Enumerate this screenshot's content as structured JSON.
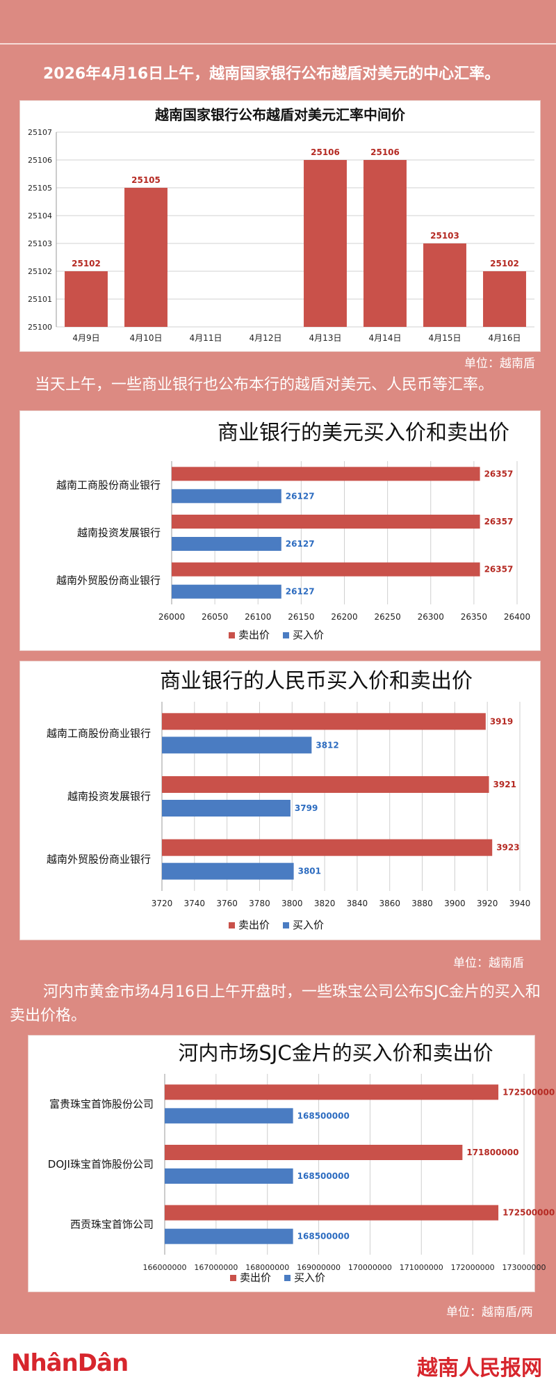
{
  "intro": {
    "p1": "2026年4月16日上午，越南国家银行公布越盾对美元的中心汇率。",
    "p2": "当天上午，一些商业银行也公布本行的越盾对美元、人民币等汇率。",
    "p3": "河内市黄金市场4月16日上午开盘时，一些珠宝公司公布SJC金片的买入和卖出价格。"
  },
  "units": {
    "u1": "单位：越南盾",
    "u2": "单位：越南盾",
    "u3": "单位：越南盾/两"
  },
  "footer": {
    "logo_left": "NhânDân",
    "logo_right": "越南人民报网"
  },
  "colors": {
    "red": "#c9514a",
    "blue": "#4a7cc2",
    "red_label": "#b52a23",
    "blue_label": "#2d6cc0"
  },
  "chart_data": [
    {
      "type": "bar",
      "title": "越南国家银行公布越盾对美元汇率中间价",
      "categories": [
        "4月9日",
        "4月10日",
        "4月11日",
        "4月12日",
        "4月13日",
        "4月14日",
        "4月15日",
        "4月16日"
      ],
      "values": [
        25102,
        25105,
        null,
        null,
        25106,
        25106,
        25103,
        25102
      ],
      "labels": [
        "25102",
        "25105",
        "",
        "",
        "25106",
        "25106",
        "25103",
        "25102"
      ],
      "ylim": [
        25100,
        25107
      ],
      "yticks": [
        25100,
        25101,
        25102,
        25103,
        25104,
        25105,
        25106,
        25107
      ],
      "ytick_labels": [
        "25100",
        "25101",
        "25102",
        "25103",
        "25104",
        "25105",
        "25106",
        "25107"
      ],
      "grid": true
    },
    {
      "type": "bar",
      "orientation": "horizontal",
      "title": "商业银行的美元买入价和卖出价",
      "categories": [
        "越南工商股份商业银行",
        "越南投资发展银行",
        "越南外贸股份商业银行"
      ],
      "series": [
        {
          "name": "卖出价",
          "values": [
            26357,
            26357,
            26357
          ],
          "labels": [
            "26357",
            "26357",
            "26357"
          ]
        },
        {
          "name": "买入价",
          "values": [
            26127,
            26127,
            26127
          ],
          "labels": [
            "26127",
            "26127",
            "26127"
          ]
        }
      ],
      "xlim": [
        26000,
        26400
      ],
      "xticks": [
        26000,
        26050,
        26100,
        26150,
        26200,
        26250,
        26300,
        26350,
        26400
      ],
      "xtick_labels": [
        "26000",
        "26050",
        "26100",
        "26150",
        "26200",
        "26250",
        "26300",
        "26350",
        "26400"
      ],
      "legend": "bottom",
      "grid": true
    },
    {
      "type": "bar",
      "orientation": "horizontal",
      "title": "商业银行的人民币买入价和卖出价",
      "categories": [
        "越南工商股份商业银行",
        "越南投资发展银行",
        "越南外贸股份商业银行"
      ],
      "series": [
        {
          "name": "卖出价",
          "values": [
            3919,
            3921,
            3923
          ],
          "labels": [
            "3919",
            "3921",
            "3923"
          ]
        },
        {
          "name": "买入价",
          "values": [
            3812,
            3799,
            3801
          ],
          "labels": [
            "3812",
            "3799",
            "3801"
          ]
        }
      ],
      "xlim": [
        3720,
        3940
      ],
      "xticks": [
        3720,
        3740,
        3760,
        3780,
        3800,
        3820,
        3840,
        3860,
        3880,
        3900,
        3920,
        3940
      ],
      "xtick_labels": [
        "3720",
        "3740",
        "3760",
        "3780",
        "3800",
        "3820",
        "3840",
        "3860",
        "3880",
        "3900",
        "3920",
        "3940"
      ],
      "legend": "bottom",
      "grid": true
    },
    {
      "type": "bar",
      "orientation": "horizontal",
      "title": "河内市场SJC金片的买入价和卖出价",
      "categories": [
        "富贵珠宝首饰股份公司",
        "DOJI珠宝首饰股份公司",
        "西贡珠宝首饰公司"
      ],
      "series": [
        {
          "name": "卖出价",
          "values": [
            172500000,
            171800000,
            172500000
          ],
          "labels": [
            "172500000",
            "171800000",
            "172500000"
          ]
        },
        {
          "name": "买入价",
          "values": [
            168500000,
            168500000,
            168500000
          ],
          "labels": [
            "168500000",
            "168500000",
            "168500000"
          ]
        }
      ],
      "xlim": [
        166000000,
        173000000
      ],
      "xticks": [
        166000000,
        167000000,
        168000000,
        169000000,
        170000000,
        171000000,
        172000000,
        173000000
      ],
      "xtick_labels": [
        "166000000",
        "167000000",
        "168000000",
        "169000000",
        "170000000",
        "171000000",
        "172000000",
        "173000000"
      ],
      "legend": "bottom",
      "grid": true
    }
  ]
}
